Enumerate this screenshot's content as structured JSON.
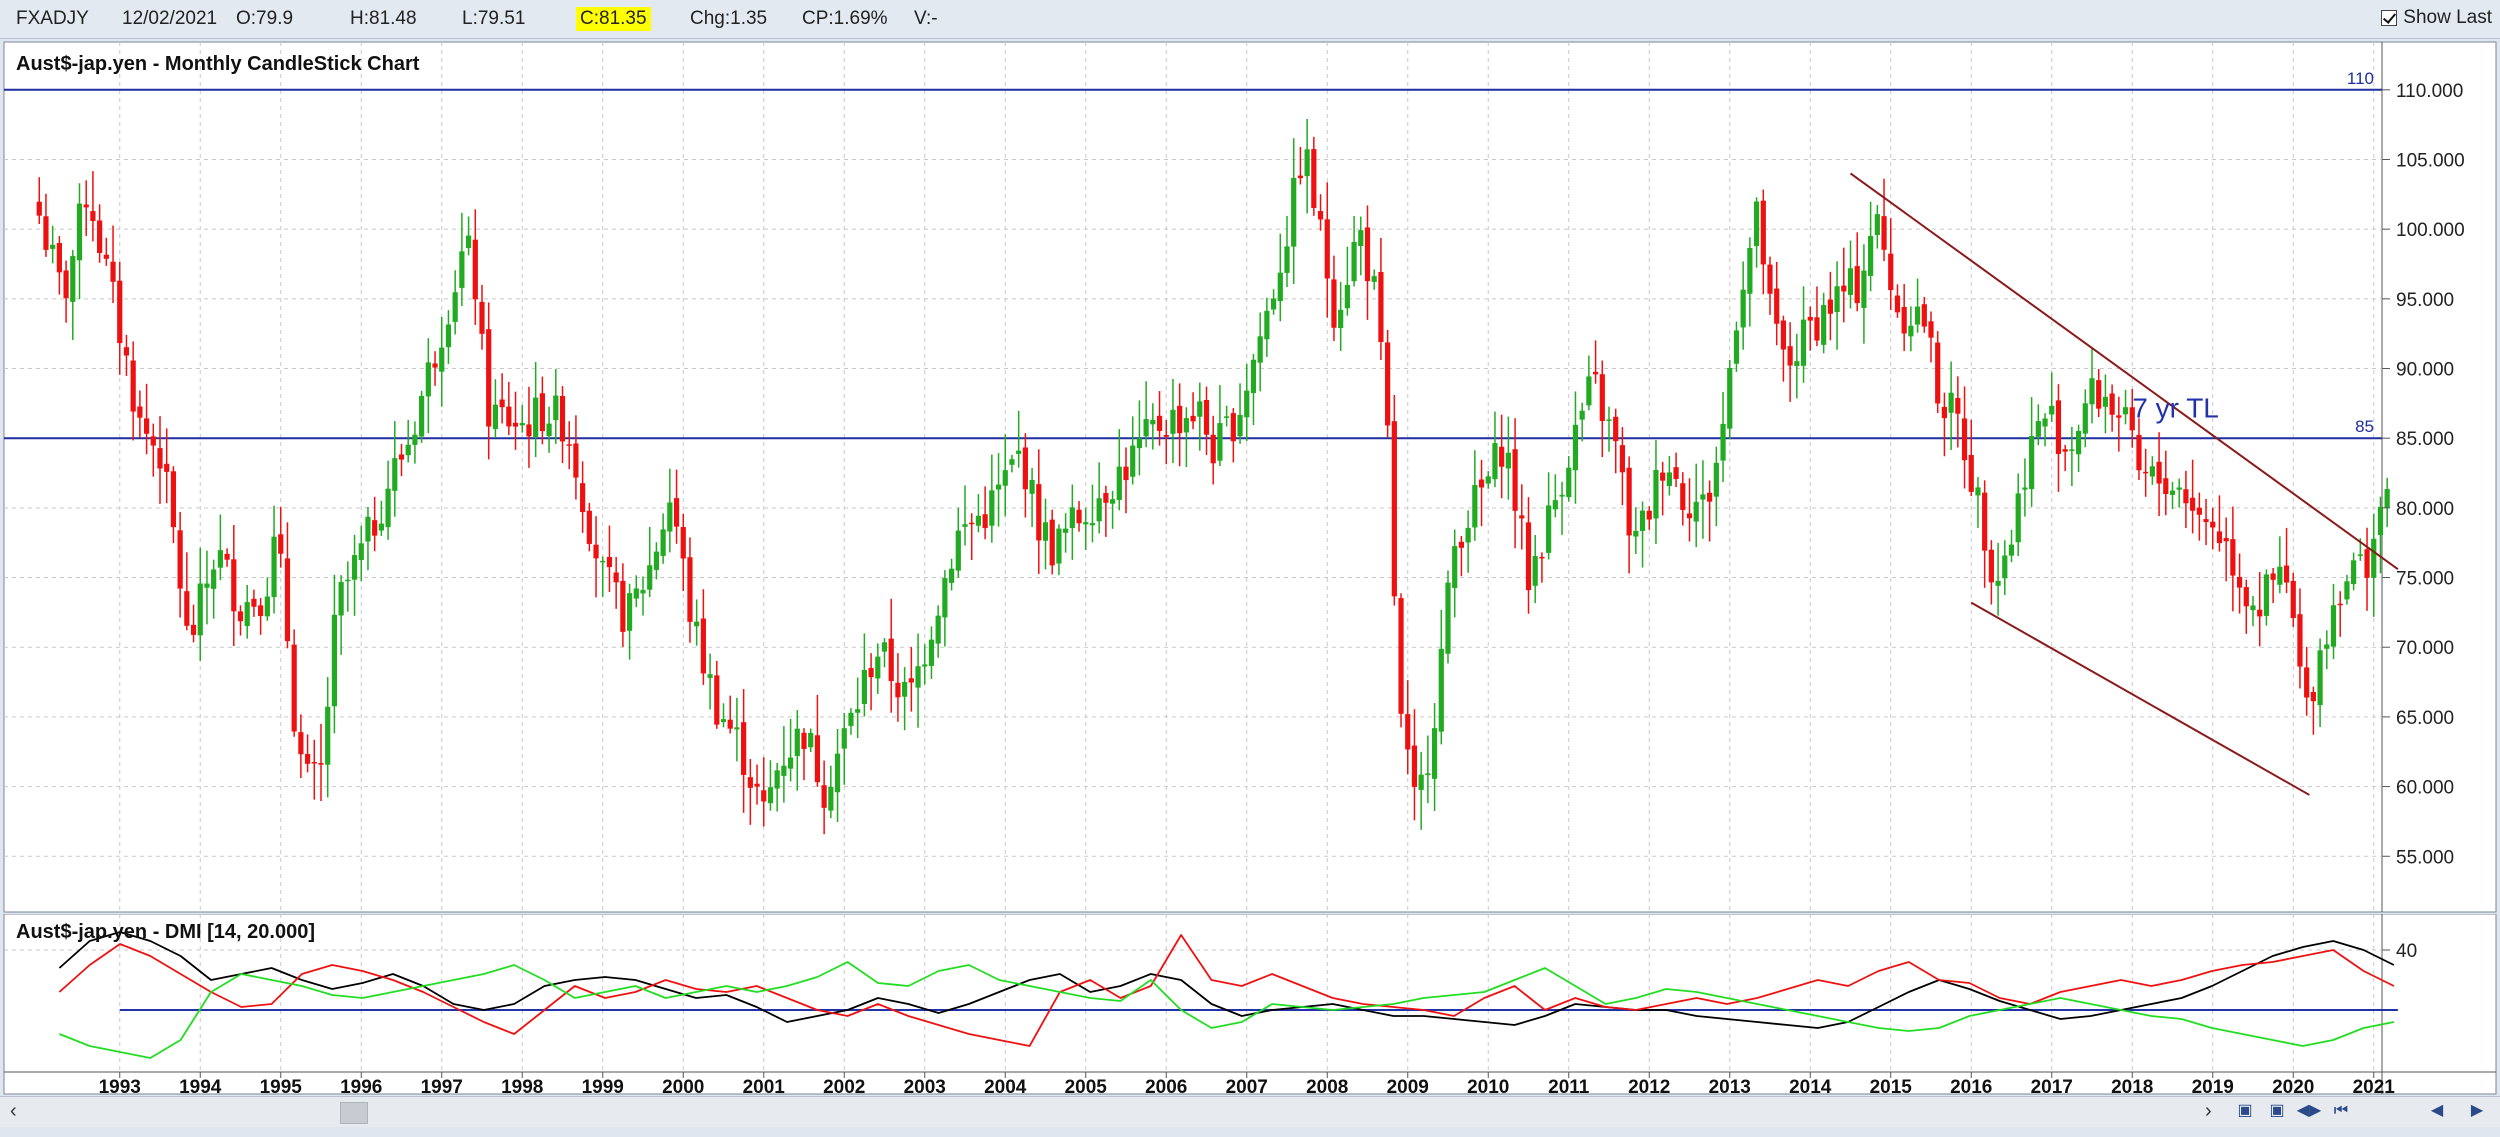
{
  "header": {
    "symbol": "FXADJY",
    "date": "12/02/2021",
    "open": "O:79.9",
    "high": "H:81.48",
    "low": "L:79.51",
    "close": "C:81.35",
    "change": "Chg:1.35",
    "change_pct": "CP:1.69%",
    "volume": "V:-",
    "show_last_label": "Show Last"
  },
  "chart_data": [
    {
      "type": "candlestick",
      "title": "Aust$-jap.yen - Monthly CandleStick Chart",
      "ylim": [
        51,
        113
      ],
      "y_ticks": [
        55,
        60,
        65,
        70,
        75,
        80,
        85,
        90,
        95,
        100,
        105,
        110
      ],
      "x_tick_labels": [
        "1993",
        "1994",
        "1995",
        "1996",
        "1997",
        "1998",
        "1999",
        "2000",
        "2001",
        "2002",
        "2003",
        "2004",
        "2005",
        "2006",
        "2007",
        "2008",
        "2009",
        "2010",
        "2011",
        "2012",
        "2013",
        "2014",
        "2015",
        "2016",
        "2017",
        "2018",
        "2019",
        "2020",
        "2021"
      ],
      "grid": true,
      "up_color": "#22aa22",
      "down_color": "#ee1111",
      "horizontal_lines": [
        {
          "value": 110,
          "label": "110",
          "color": "#1f2f9f"
        },
        {
          "value": 85,
          "label": "85",
          "color": "#1f2f9f"
        }
      ],
      "trendlines": [
        {
          "from": [
            2014.5,
            104
          ],
          "to": [
            2021.3,
            75.6
          ],
          "color": "#8b1a1a"
        },
        {
          "from": [
            2016.0,
            73.2
          ],
          "to": [
            2020.2,
            59.4
          ],
          "color": "#8b1a1a"
        }
      ],
      "annotations": [
        {
          "text": "7 yr TL",
          "x": 2018.0,
          "y": 86.5,
          "color": "#2233aa"
        }
      ],
      "anchors": [
        [
          1992.0,
          101
        ],
        [
          1992.3,
          95
        ],
        [
          1992.6,
          103
        ],
        [
          1992.95,
          94
        ],
        [
          1993.25,
          86
        ],
        [
          1993.5,
          84
        ],
        [
          1993.7,
          77
        ],
        [
          1993.85,
          70
        ],
        [
          1994.0,
          73
        ],
        [
          1994.2,
          77
        ],
        [
          1994.5,
          73
        ],
        [
          1994.8,
          74
        ],
        [
          1994.95,
          78
        ],
        [
          1995.1,
          70
        ],
        [
          1995.2,
          63
        ],
        [
          1995.35,
          60
        ],
        [
          1995.5,
          61
        ],
        [
          1995.7,
          73
        ],
        [
          1996.1,
          78
        ],
        [
          1996.35,
          82
        ],
        [
          1996.6,
          85
        ],
        [
          1997.0,
          93
        ],
        [
          1997.3,
          99
        ],
        [
          1997.45,
          95
        ],
        [
          1997.55,
          87
        ],
        [
          1998.0,
          86
        ],
        [
          1998.3,
          87
        ],
        [
          1998.55,
          86
        ],
        [
          1998.75,
          81
        ],
        [
          1999.0,
          75
        ],
        [
          1999.3,
          72
        ],
        [
          1999.6,
          76
        ],
        [
          1999.85,
          81
        ],
        [
          2000.1,
          72
        ],
        [
          2000.4,
          66
        ],
        [
          2000.7,
          63
        ],
        [
          2001.0,
          58
        ],
        [
          2001.2,
          62
        ],
        [
          2001.5,
          64
        ],
        [
          2001.75,
          60
        ],
        [
          2002.1,
          65
        ],
        [
          2002.4,
          70
        ],
        [
          2002.6,
          68
        ],
        [
          2002.8,
          66
        ],
        [
          2003.0,
          70
        ],
        [
          2003.4,
          78
        ],
        [
          2003.8,
          80
        ],
        [
          2004.2,
          84
        ],
        [
          2004.4,
          79
        ],
        [
          2004.6,
          77
        ],
        [
          2005.0,
          80
        ],
        [
          2005.5,
          83
        ],
        [
          2005.9,
          86
        ],
        [
          2006.4,
          87
        ],
        [
          2006.6,
          84
        ],
        [
          2006.9,
          87
        ],
        [
          2007.3,
          95
        ],
        [
          2007.55,
          101
        ],
        [
          2007.7,
          106
        ],
        [
          2007.9,
          100
        ],
        [
          2008.1,
          94
        ],
        [
          2008.4,
          100
        ],
        [
          2008.6,
          95
        ],
        [
          2008.75,
          85
        ],
        [
          2008.9,
          65
        ],
        [
          2009.1,
          58
        ],
        [
          2009.3,
          64
        ],
        [
          2009.6,
          78
        ],
        [
          2010.0,
          82
        ],
        [
          2010.2,
          85
        ],
        [
          2010.35,
          80
        ],
        [
          2010.5,
          75
        ],
        [
          2010.8,
          80
        ],
        [
          2011.0,
          84
        ],
        [
          2011.3,
          89
        ],
        [
          2011.6,
          84
        ],
        [
          2011.8,
          77
        ],
        [
          2012.0,
          80
        ],
        [
          2012.2,
          84
        ],
        [
          2012.4,
          81
        ],
        [
          2012.7,
          80
        ],
        [
          2012.9,
          85
        ],
        [
          2013.1,
          95
        ],
        [
          2013.35,
          101
        ],
        [
          2013.5,
          94
        ],
        [
          2013.7,
          90
        ],
        [
          2014.0,
          93
        ],
        [
          2014.3,
          95
        ],
        [
          2014.6,
          96
        ],
        [
          2014.8,
          101
        ],
        [
          2015.1,
          94
        ],
        [
          2015.4,
          94
        ],
        [
          2015.6,
          88
        ],
        [
          2015.85,
          86
        ],
        [
          2016.1,
          80
        ],
        [
          2016.3,
          75
        ],
        [
          2016.5,
          78
        ],
        [
          2016.7,
          84
        ],
        [
          2016.95,
          87
        ],
        [
          2017.2,
          84
        ],
        [
          2017.45,
          88
        ],
        [
          2017.7,
          88
        ],
        [
          2017.9,
          86
        ],
        [
          2018.1,
          82
        ],
        [
          2018.4,
          82
        ],
        [
          2018.7,
          81
        ],
        [
          2018.85,
          79
        ],
        [
          2019.0,
          79
        ],
        [
          2019.2,
          77
        ],
        [
          2019.4,
          74
        ],
        [
          2019.6,
          73
        ],
        [
          2019.8,
          75
        ],
        [
          2019.95,
          74
        ],
        [
          2020.15,
          65
        ],
        [
          2020.3,
          69
        ],
        [
          2020.6,
          75
        ],
        [
          2020.9,
          76
        ],
        [
          2021.08,
          80
        ],
        [
          2021.18,
          81.35
        ]
      ]
    },
    {
      "type": "line",
      "title": "Aust$-jap.yen - DMI [14, 20.000]",
      "ylim": [
        0,
        50
      ],
      "y_ticks": [
        40
      ],
      "reference_line": {
        "value": 20,
        "color": "#2233aa"
      },
      "series": [
        {
          "color": "#000000",
          "values": [
            34,
            43,
            46,
            43,
            38,
            30,
            32,
            34,
            30,
            27,
            29,
            32,
            28,
            22,
            20,
            22,
            28,
            30,
            31,
            30,
            27,
            24,
            25,
            21,
            16,
            18,
            20,
            24,
            22,
            19,
            22,
            26,
            30,
            32,
            26,
            28,
            32,
            30,
            22,
            18,
            20,
            21,
            22,
            20,
            18,
            18,
            17,
            16,
            15,
            18,
            22,
            21,
            20,
            20,
            18,
            17,
            16,
            15,
            14,
            16,
            21,
            26,
            30,
            27,
            23,
            20,
            17,
            18,
            20,
            22,
            24,
            28,
            33,
            38,
            41,
            43,
            40,
            35
          ]
        },
        {
          "color": "#ee1111",
          "values": [
            26,
            35,
            42,
            38,
            32,
            26,
            21,
            22,
            32,
            35,
            33,
            30,
            26,
            21,
            16,
            12,
            20,
            28,
            24,
            26,
            30,
            27,
            26,
            28,
            24,
            20,
            18,
            22,
            18,
            15,
            12,
            10,
            8,
            26,
            30,
            24,
            28,
            45,
            30,
            28,
            32,
            28,
            24,
            22,
            21,
            20,
            18,
            24,
            28,
            20,
            24,
            21,
            20,
            22,
            24,
            22,
            24,
            27,
            30,
            28,
            33,
            36,
            30,
            29,
            24,
            22,
            26,
            28,
            30,
            28,
            30,
            33,
            35,
            36,
            38,
            40,
            33,
            28
          ]
        },
        {
          "color": "#22dd22",
          "values": [
            12,
            8,
            6,
            4,
            10,
            26,
            32,
            30,
            28,
            25,
            24,
            26,
            28,
            30,
            32,
            35,
            30,
            24,
            26,
            28,
            24,
            26,
            28,
            26,
            28,
            31,
            36,
            29,
            28,
            33,
            35,
            30,
            28,
            26,
            24,
            23,
            30,
            20,
            14,
            16,
            22,
            21,
            20,
            21,
            22,
            24,
            25,
            26,
            30,
            34,
            28,
            22,
            24,
            27,
            26,
            24,
            22,
            20,
            18,
            16,
            14,
            13,
            14,
            18,
            20,
            22,
            24,
            22,
            20,
            18,
            17,
            14,
            12,
            10,
            8,
            10,
            14,
            16
          ]
        }
      ]
    }
  ],
  "scrollbar": {
    "left_arrow": "‹",
    "right_arrow": "›"
  }
}
